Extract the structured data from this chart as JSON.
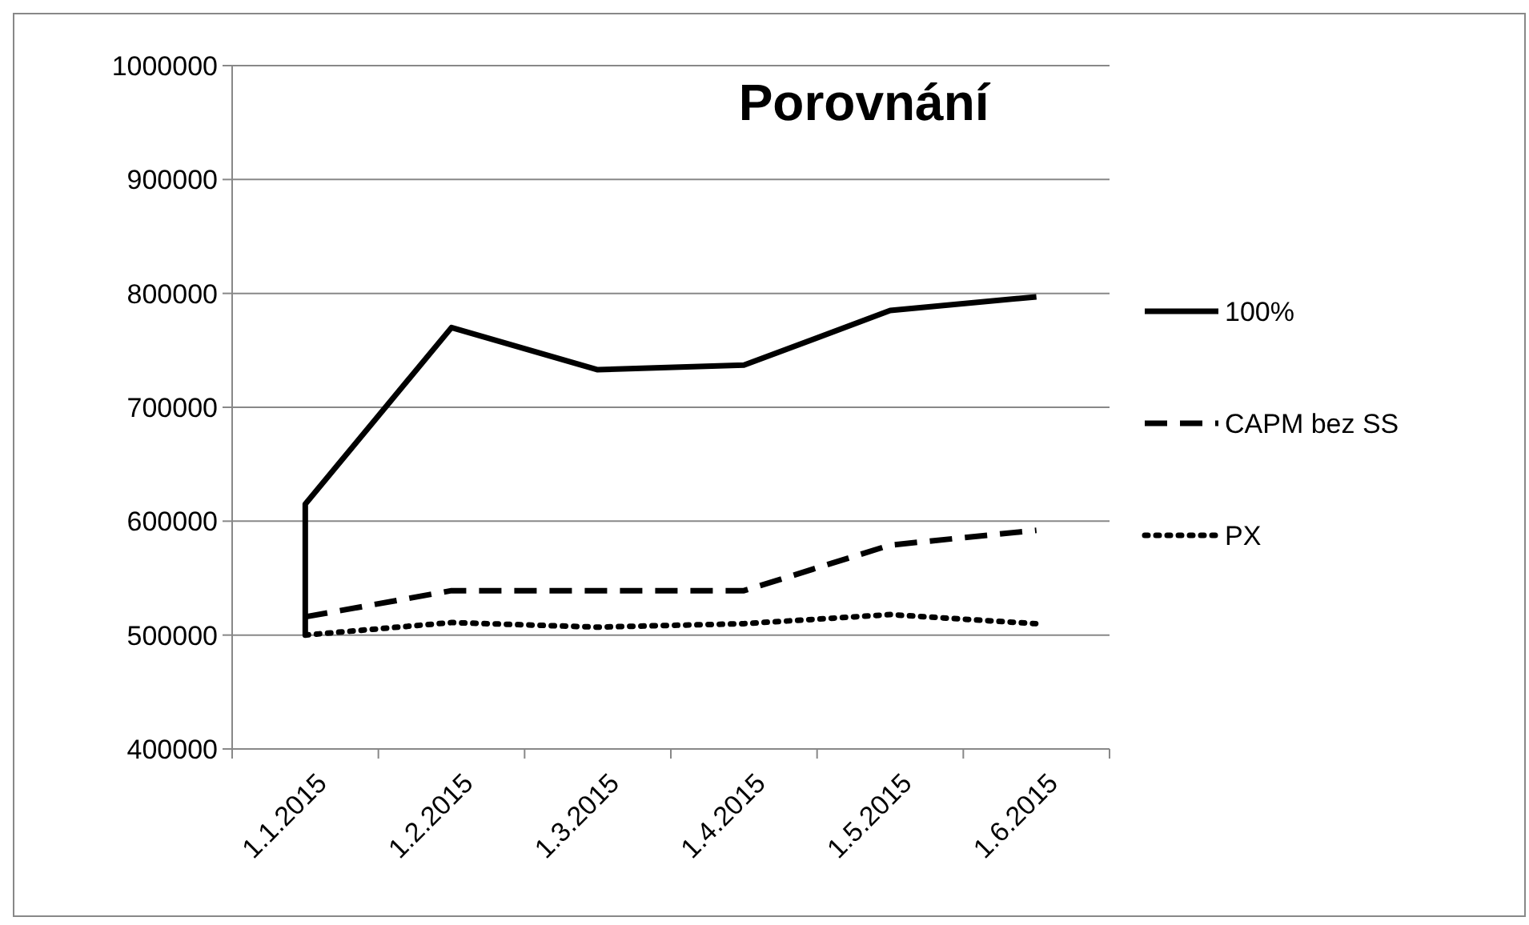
{
  "chart_data": {
    "type": "line",
    "title": "Porovnání",
    "categories": [
      "1.1.2015",
      "1.2.2015",
      "1.3.2015",
      "1.4.2015",
      "1.5.2015",
      "1.6.2015"
    ],
    "series": [
      {
        "name": "100%",
        "color": "#000000",
        "line_style": "solid",
        "x": [
          "1.1.2015",
          "1.1.2015",
          "1.2.2015",
          "1.3.2015",
          "1.4.2015",
          "1.5.2015",
          "1.6.2015"
        ],
        "values": [
          500000,
          615000,
          770000,
          733000,
          737000,
          785000,
          797000
        ]
      },
      {
        "name": "CAPM bez SS",
        "color": "#000000",
        "line_style": "dashed",
        "values": [
          516000,
          539000,
          539000,
          539000,
          579000,
          592000
        ]
      },
      {
        "name": "PX",
        "color": "#000000",
        "line_style": "dotted",
        "values": [
          500000,
          511000,
          507000,
          510000,
          518000,
          510000
        ]
      }
    ],
    "ylim": [
      400000,
      1000000
    ],
    "yticks": [
      400000,
      500000,
      600000,
      700000,
      800000,
      900000,
      1000000
    ],
    "grid": "y",
    "legend": "right",
    "marker": "none"
  }
}
